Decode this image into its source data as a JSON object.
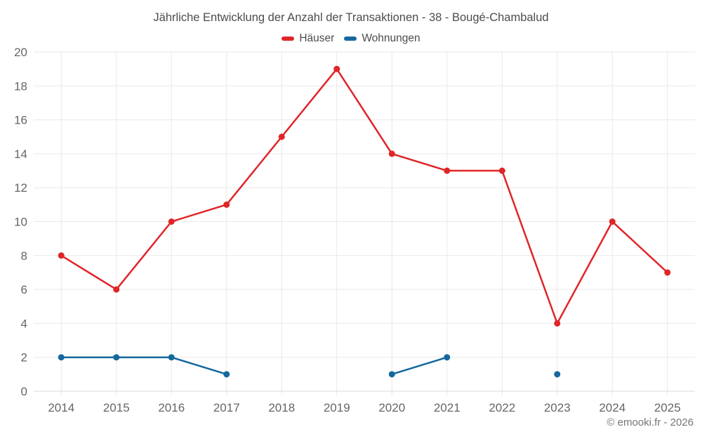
{
  "title": "Jährliche Entwicklung der Anzahl der Transaktionen - 38 - Bougé-Chambalud",
  "footer": {
    "credit": "© emooki.fr - 2026"
  },
  "colors": {
    "background": "#ffffff",
    "grid": "#e9e9e9",
    "axis_line": "#d9d9d9",
    "title_text": "#4c4c4c",
    "tick_text": "#666666",
    "footer_text": "#757575",
    "haeuser": "#e02528",
    "wohnungen": "#15689f"
  },
  "chart_data": {
    "type": "line",
    "title": "Jährliche Entwicklung der Anzahl der Transaktionen - 38 - Bougé-Chambalud",
    "categories": [
      "2014",
      "2015",
      "2016",
      "2017",
      "2018",
      "2019",
      "2020",
      "2021",
      "2022",
      "2023",
      "2024",
      "2025"
    ],
    "series": [
      {
        "name": "Häuser",
        "color": "#e02528",
        "values": [
          8,
          6,
          10,
          11,
          15,
          19,
          14,
          13,
          13,
          4,
          10,
          7
        ]
      },
      {
        "name": "Wohnungen",
        "color": "#15689f",
        "values": [
          2,
          2,
          2,
          1,
          null,
          null,
          1,
          2,
          null,
          1,
          null,
          null
        ]
      }
    ],
    "xlabel": "",
    "ylabel": "",
    "ylim": [
      0,
      20
    ],
    "ytick_step": 2,
    "grid": true,
    "legend_position": "top"
  }
}
